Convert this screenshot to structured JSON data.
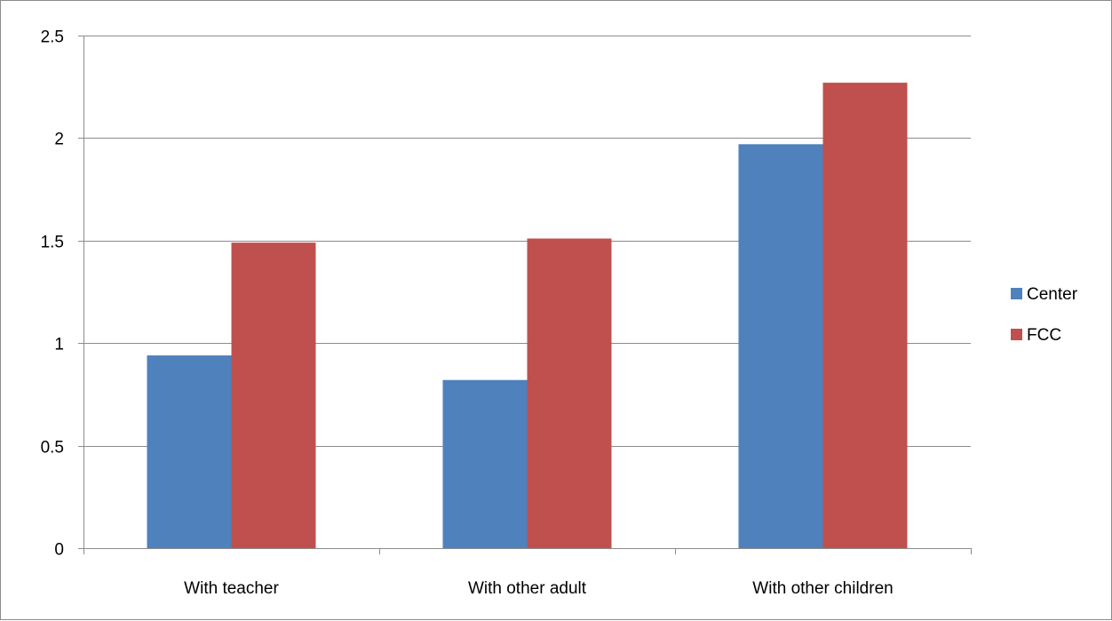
{
  "chart_data": {
    "type": "bar",
    "title": "",
    "xlabel": "",
    "ylabel": "",
    "categories": [
      "With teacher",
      "With other adult",
      "With other children"
    ],
    "series": [
      {
        "name": "Center",
        "color": "#4f81bd",
        "values": [
          0.94,
          0.82,
          1.97
        ]
      },
      {
        "name": "FCC",
        "color": "#c0504d",
        "values": [
          1.49,
          1.51,
          2.27
        ]
      }
    ],
    "ylim": [
      0,
      2.5
    ],
    "yticks": [
      0,
      0.5,
      1,
      1.5,
      2,
      2.5
    ],
    "ytick_labels": [
      "0",
      "0.5",
      "1",
      "1.5",
      "2",
      "2.5"
    ],
    "grid": true,
    "legend_position": "right",
    "gridline_color": "#8c8c8c"
  }
}
